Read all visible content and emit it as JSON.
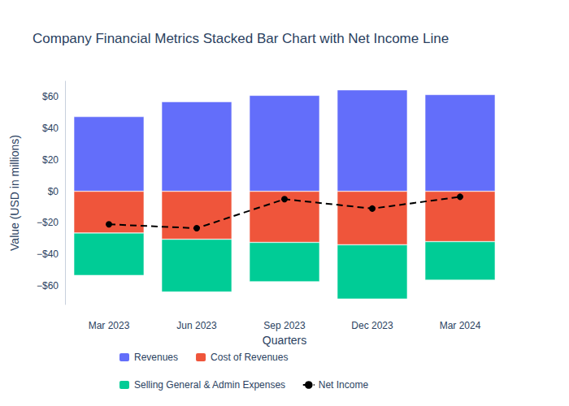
{
  "chart_data": {
    "type": "bar",
    "title": "Company Financial Metrics Stacked Bar Chart with Net Income Line",
    "x_label": "Quarters",
    "y_label": "Value (USD in millions)",
    "categories": [
      "Mar 2023",
      "Jun 2023",
      "Sep 2023",
      "Dec 2023",
      "Mar 2024"
    ],
    "stacked": true,
    "grid": false,
    "legend": "bottom",
    "ylim": [
      -72,
      70
    ],
    "yticks": [
      {
        "value": -60,
        "label": "−$60"
      },
      {
        "value": -40,
        "label": "−$40"
      },
      {
        "value": -20,
        "label": "−$20"
      },
      {
        "value": 0,
        "label": "$0"
      },
      {
        "value": 20,
        "label": "$20"
      },
      {
        "value": 40,
        "label": "$40"
      },
      {
        "value": 60,
        "label": "$60"
      }
    ],
    "series": [
      {
        "name": "Revenues",
        "type": "bar",
        "color": "#636efa",
        "values": [
          47.5,
          57,
          61,
          64.5,
          61.5
        ]
      },
      {
        "name": "Cost of Revenues",
        "type": "bar",
        "color": "#ef553b",
        "values": [
          -26.5,
          -30.5,
          -32.5,
          -34,
          -32
        ]
      },
      {
        "name": "Selling General & Admin Expenses",
        "type": "bar",
        "color": "#00cc96",
        "values": [
          -27,
          -33.5,
          -25,
          -34.5,
          -24.5
        ]
      },
      {
        "name": "Net Income",
        "type": "line",
        "color": "#000000",
        "line_style": "dashed",
        "marker": "circle",
        "values": [
          -21,
          -23.5,
          -5,
          -11,
          -3.5
        ]
      }
    ]
  }
}
